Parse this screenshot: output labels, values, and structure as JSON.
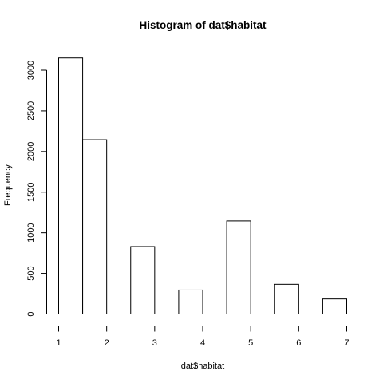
{
  "chart_data": {
    "type": "bar",
    "title": "Histogram of dat$habitat",
    "xlabel": "dat$habitat",
    "ylabel": "Frequency",
    "bins": [
      {
        "x0": 1.0,
        "x1": 1.5,
        "count": 3150
      },
      {
        "x0": 1.5,
        "x1": 2.0,
        "count": 2145
      },
      {
        "x0": 2.0,
        "x1": 2.5,
        "count": 0
      },
      {
        "x0": 2.5,
        "x1": 3.0,
        "count": 830
      },
      {
        "x0": 3.0,
        "x1": 3.5,
        "count": 0
      },
      {
        "x0": 3.5,
        "x1": 4.0,
        "count": 295
      },
      {
        "x0": 4.0,
        "x1": 4.5,
        "count": 0
      },
      {
        "x0": 4.5,
        "x1": 5.0,
        "count": 1145
      },
      {
        "x0": 5.0,
        "x1": 5.5,
        "count": 0
      },
      {
        "x0": 5.5,
        "x1": 6.0,
        "count": 365
      },
      {
        "x0": 6.0,
        "x1": 6.5,
        "count": 0
      },
      {
        "x0": 6.5,
        "x1": 7.0,
        "count": 185
      }
    ],
    "xlim": [
      1,
      7
    ],
    "ylim": [
      0,
      3000
    ],
    "x_ticks": [
      "1",
      "2",
      "3",
      "4",
      "5",
      "6",
      "7"
    ],
    "y_ticks": [
      "0",
      "500",
      "1000",
      "1500",
      "2000",
      "2500",
      "3000"
    ],
    "grid": false,
    "legend": "none",
    "colors": {
      "bar_fill": "#ffffff",
      "bar_stroke": "#000000",
      "background": "#ffffff"
    }
  }
}
